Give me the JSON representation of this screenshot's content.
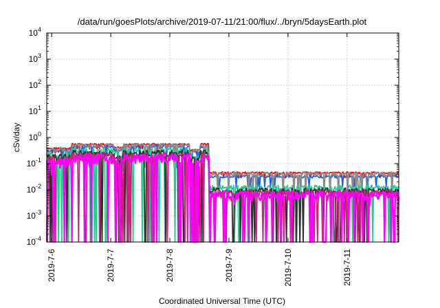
{
  "chart_data": {
    "type": "line",
    "title": "/data/run/goesPlots/archive/2019-07-11/21:00/flux/../bryn/5daysEarth.plot",
    "xlabel": "Coordinated Universal Time (UTC)",
    "ylabel": "cSv/day",
    "xlim": [
      "2019-07-05T22:00",
      "2019-07-11T21:00"
    ],
    "x_ticks": [
      "2019-7-6",
      "2019-7-7",
      "2019-7-8",
      "2019-7-9",
      "2019-7-10",
      "2019-7-11"
    ],
    "y_scale": "log",
    "ylim": [
      0.0001,
      10000
    ],
    "y_ticks": [
      {
        "base": "10",
        "exp": "4"
      },
      {
        "base": "10",
        "exp": "3"
      },
      {
        "base": "10",
        "exp": "2"
      },
      {
        "base": "10",
        "exp": "1"
      },
      {
        "base": "10",
        "exp": "0"
      },
      {
        "base": "10",
        "exp": "-1"
      },
      {
        "base": "10",
        "exp": "-2"
      },
      {
        "base": "10",
        "exp": "-3"
      },
      {
        "base": "10",
        "exp": "-4"
      }
    ],
    "grid": true,
    "legend": "none",
    "shock_time": "2019-07-08T16:00",
    "series": [
      {
        "color": "#ff0000",
        "before": 0.55,
        "after": 0.045
      },
      {
        "color": "#1a64e0",
        "before": 0.45,
        "after": 0.032
      },
      {
        "color": "#8a8a8a",
        "before": 0.5,
        "after": 0.04
      },
      {
        "color": "#20d08a",
        "before": 0.32,
        "after": 0.012
      },
      {
        "color": "#303030",
        "before": 0.25,
        "after": 0.009
      },
      {
        "color": "#c8247a",
        "before": 0.2,
        "after": 0.0075
      },
      {
        "color": "#ff00ff",
        "before": 0.17,
        "after": 0.0065
      }
    ]
  }
}
